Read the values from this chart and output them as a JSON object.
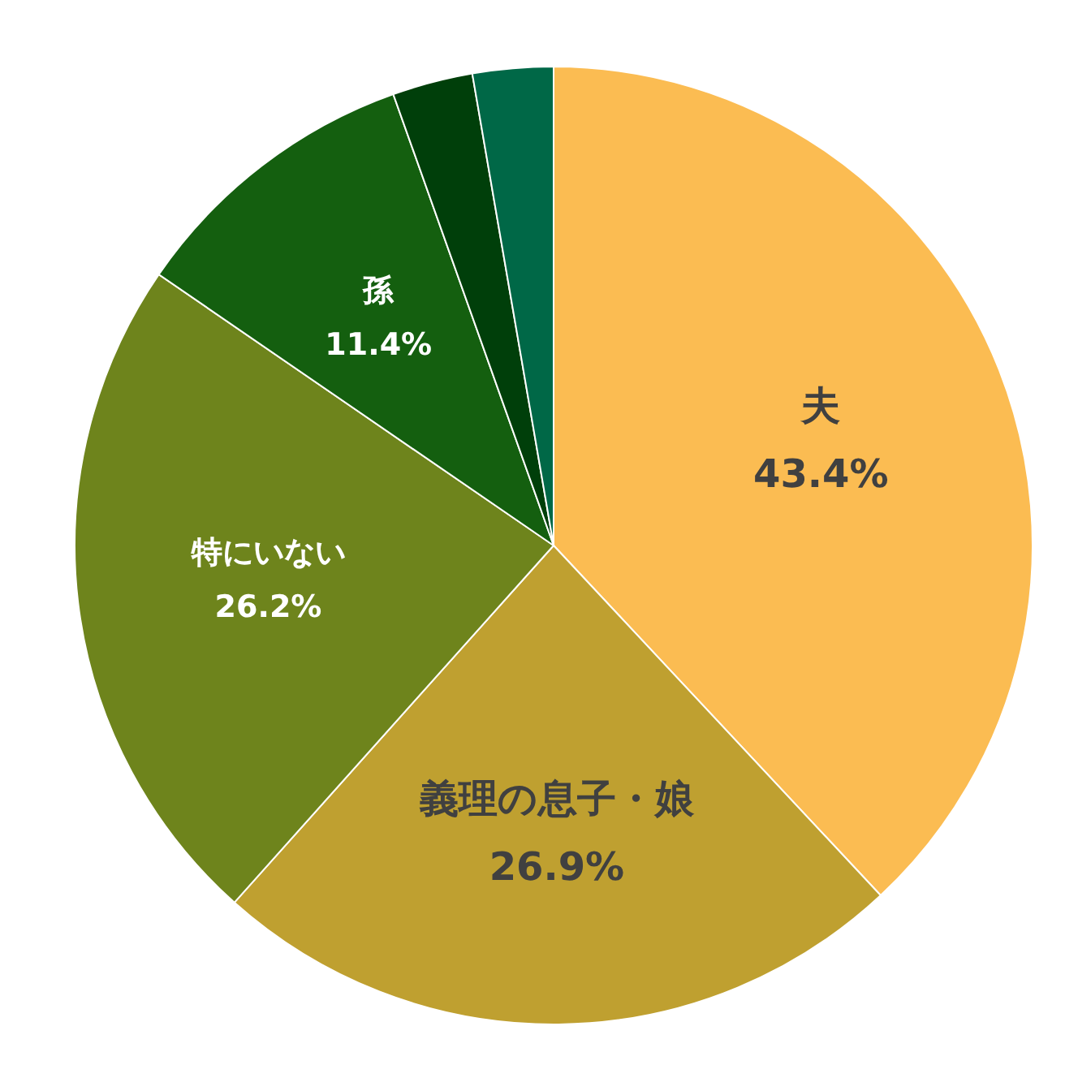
{
  "chart_data": {
    "type": "pie",
    "categories": [
      "夫",
      "義理の息子・娘",
      "特にいない",
      "孫",
      null,
      null
    ],
    "values": [
      43.4,
      26.9,
      26.2,
      11.4,
      3.1,
      3.1
    ],
    "colors": [
      "#fbbc52",
      "#bfa030",
      "#6e841c",
      "#145f0f",
      "#003f0a",
      "#006847"
    ],
    "value_labels": [
      "43.4%",
      "26.9%",
      "26.2%",
      "11.4%",
      null,
      null
    ]
  }
}
